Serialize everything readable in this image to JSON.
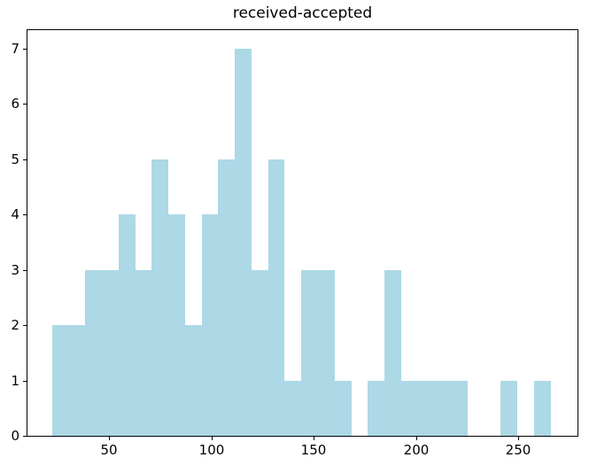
{
  "colors": {
    "bar": "#ADD8E6",
    "spine": "#000000",
    "text": "#000000",
    "background": "#FFFFFF"
  },
  "chart_data": {
    "type": "histogram",
    "title": "received-accepted",
    "xlabel": "",
    "ylabel": "",
    "grid": false,
    "legend": null,
    "bin_start": 22,
    "bin_width": 8.13,
    "bin_count": 30,
    "bin_range": [
      22,
      265.9
    ],
    "counts": [
      2,
      2,
      3,
      3,
      4,
      3,
      5,
      4,
      2,
      4,
      5,
      7,
      3,
      5,
      1,
      3,
      3,
      1,
      0,
      1,
      3,
      1,
      1,
      1,
      1,
      0,
      0,
      1,
      0,
      1
    ],
    "total_samples": 70,
    "x_ticks": [
      50,
      100,
      150,
      200,
      250
    ],
    "y_ticks": [
      0,
      1,
      2,
      3,
      4,
      5,
      6,
      7
    ],
    "xlim": [
      10,
      279
    ],
    "ylim": [
      0,
      7.33
    ]
  }
}
